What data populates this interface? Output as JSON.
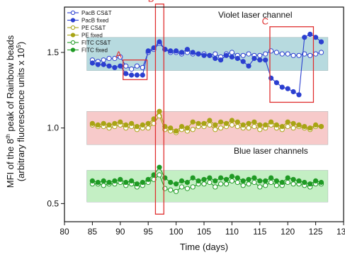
{
  "chart_data": {
    "type": "scatter",
    "xlabel": "Time (days)",
    "ylabel_line1": "MFI of the 8th peak of Rainbow beads",
    "ylabel_line2": "(arbitrary fluorescence units x 10",
    "ylabel_sup": "5",
    "ylabel_close": ")",
    "xlim": [
      80,
      130
    ],
    "ylim": [
      0.38,
      1.8
    ],
    "xticks": [
      80,
      85,
      90,
      95,
      100,
      105,
      110,
      115,
      120,
      125,
      130
    ],
    "yticks": [
      0.5,
      1.0,
      1.5
    ],
    "ytick_labels": [
      "0.5",
      "1.0",
      "1.5"
    ],
    "annotations": {
      "violet": "Violet laser channel",
      "blue": "Blue laser channels"
    },
    "bands": [
      {
        "ymin": 1.38,
        "ymax": 1.6,
        "color": "#b7dadf"
      },
      {
        "ymin": 0.89,
        "ymax": 1.11,
        "color": "#f7caca"
      },
      {
        "ymin": 0.51,
        "ymax": 0.72,
        "color": "#c4efc4"
      }
    ],
    "boxes": [
      {
        "label": "A",
        "x0": 90.5,
        "x1": 94.8,
        "y0": 1.32,
        "y1": 1.45
      },
      {
        "label": "B",
        "x0": 96.3,
        "x1": 97.8,
        "y0": 0.43,
        "y1": 1.82
      },
      {
        "label": "C",
        "x0": 116.8,
        "x1": 124.6,
        "y0": 1.17,
        "y1": 1.67
      }
    ],
    "legend": [
      {
        "label": "PacB CS&T",
        "color": "#2b3fd0",
        "filled": false
      },
      {
        "label": "PacB fixed",
        "color": "#2b3fd0",
        "filled": true
      },
      {
        "label": "PE CS&T",
        "color": "#a8a414",
        "filled": false
      },
      {
        "label": "PE fixed",
        "color": "#a8a414",
        "filled": true
      },
      {
        "label": "FITC CS&T",
        "color": "#1f9a24",
        "filled": false
      },
      {
        "label": "FITC fixed",
        "color": "#1f9a24",
        "filled": true
      }
    ],
    "series": [
      {
        "name": "PacB CS&T",
        "color": "#2b3fd0",
        "filled": false,
        "x": [
          85,
          86,
          87,
          88,
          89,
          90,
          91,
          92,
          93,
          94,
          95,
          96,
          97,
          98,
          99,
          100,
          101,
          102,
          103,
          104,
          105,
          106,
          107,
          108,
          109,
          110,
          111,
          112,
          113,
          114,
          115,
          116,
          117,
          118,
          119,
          120,
          121,
          122,
          123,
          124,
          125,
          126
        ],
        "y": [
          1.45,
          1.44,
          1.45,
          1.46,
          1.46,
          1.47,
          1.41,
          1.39,
          1.41,
          1.4,
          1.5,
          1.52,
          1.56,
          1.52,
          1.5,
          1.5,
          1.49,
          1.5,
          1.49,
          1.49,
          1.49,
          1.48,
          1.49,
          1.47,
          1.49,
          1.5,
          1.48,
          1.48,
          1.49,
          1.48,
          1.48,
          1.49,
          1.51,
          1.5,
          1.49,
          1.49,
          1.48,
          1.48,
          1.49,
          1.48,
          1.49,
          1.5
        ]
      },
      {
        "name": "PacB fixed",
        "color": "#2b3fd0",
        "filled": true,
        "x": [
          85,
          86,
          87,
          88,
          89,
          90,
          91,
          92,
          93,
          94,
          95,
          96,
          97,
          98,
          99,
          100,
          101,
          102,
          103,
          104,
          105,
          106,
          107,
          108,
          109,
          110,
          111,
          112,
          113,
          114,
          115,
          116,
          117,
          118,
          119,
          120,
          121,
          122,
          123,
          124,
          125,
          126
        ],
        "y": [
          1.43,
          1.42,
          1.42,
          1.41,
          1.4,
          1.41,
          1.36,
          1.35,
          1.35,
          1.35,
          1.51,
          1.53,
          1.57,
          1.52,
          1.51,
          1.51,
          1.5,
          1.52,
          1.5,
          1.49,
          1.48,
          1.48,
          1.46,
          1.45,
          1.48,
          1.47,
          1.46,
          1.44,
          1.41,
          1.46,
          1.45,
          1.45,
          1.33,
          1.3,
          1.27,
          1.26,
          1.24,
          1.22,
          1.6,
          1.62,
          1.6,
          1.57
        ]
      },
      {
        "name": "PE CS&T",
        "color": "#a8a414",
        "filled": false,
        "x": [
          85,
          86,
          87,
          88,
          89,
          90,
          91,
          92,
          93,
          94,
          95,
          96,
          97,
          98,
          99,
          100,
          101,
          102,
          103,
          104,
          105,
          106,
          107,
          108,
          109,
          110,
          111,
          112,
          113,
          114,
          115,
          116,
          117,
          118,
          119,
          120,
          121,
          122,
          123,
          124,
          125,
          126
        ],
        "y": [
          1.02,
          1.01,
          1.01,
          1.0,
          1.01,
          1.02,
          1.0,
          1.01,
          0.99,
          1.0,
          1.0,
          1.03,
          1.08,
          0.99,
          0.98,
          0.97,
          0.99,
          0.98,
          0.99,
          1.01,
          1.01,
          1.02,
          0.99,
          1.0,
          1.01,
          1.02,
          1.01,
          1.0,
          1.0,
          1.01,
          0.99,
          1.0,
          1.02,
          1.0,
          0.99,
          1.01,
          1.0,
          1.01,
          1.0,
          0.99,
          1.01,
          1.01
        ]
      },
      {
        "name": "PE fixed",
        "color": "#a8a414",
        "filled": true,
        "x": [
          85,
          86,
          87,
          88,
          89,
          90,
          91,
          92,
          93,
          94,
          95,
          96,
          97,
          98,
          99,
          100,
          101,
          102,
          103,
          104,
          105,
          106,
          107,
          108,
          109,
          110,
          111,
          112,
          113,
          114,
          115,
          116,
          117,
          118,
          119,
          120,
          121,
          122,
          123,
          124,
          125,
          126
        ],
        "y": [
          1.03,
          1.02,
          1.03,
          1.02,
          1.03,
          1.04,
          1.02,
          1.03,
          1.01,
          1.02,
          1.03,
          1.06,
          1.11,
          1.01,
          1.0,
          0.98,
          1.01,
          1.0,
          1.04,
          1.03,
          1.03,
          1.05,
          1.02,
          1.04,
          1.03,
          1.05,
          1.04,
          1.02,
          1.03,
          1.04,
          1.02,
          1.02,
          1.04,
          1.02,
          1.01,
          1.04,
          1.03,
          1.02,
          1.01,
          1.0,
          1.02,
          1.01
        ]
      },
      {
        "name": "FITC CS&T",
        "color": "#1f9a24",
        "filled": false,
        "x": [
          85,
          86,
          87,
          88,
          89,
          90,
          91,
          92,
          93,
          94,
          95,
          96,
          97,
          98,
          99,
          100,
          101,
          102,
          103,
          104,
          105,
          106,
          107,
          108,
          109,
          110,
          111,
          112,
          113,
          114,
          115,
          116,
          117,
          118,
          119,
          120,
          121,
          122,
          123,
          124,
          125,
          126
        ],
        "y": [
          0.63,
          0.63,
          0.62,
          0.63,
          0.63,
          0.64,
          0.62,
          0.63,
          0.61,
          0.62,
          0.64,
          0.66,
          0.69,
          0.6,
          0.59,
          0.58,
          0.61,
          0.6,
          0.61,
          0.63,
          0.63,
          0.64,
          0.61,
          0.63,
          0.63,
          0.65,
          0.64,
          0.62,
          0.63,
          0.64,
          0.61,
          0.62,
          0.64,
          0.62,
          0.62,
          0.64,
          0.63,
          0.63,
          0.62,
          0.61,
          0.63,
          0.63
        ]
      },
      {
        "name": "FITC fixed",
        "color": "#1f9a24",
        "filled": true,
        "x": [
          85,
          86,
          87,
          88,
          89,
          90,
          91,
          92,
          93,
          94,
          95,
          96,
          97,
          98,
          99,
          100,
          101,
          102,
          103,
          104,
          105,
          106,
          107,
          108,
          109,
          110,
          111,
          112,
          113,
          114,
          115,
          116,
          117,
          118,
          119,
          120,
          121,
          122,
          123,
          124,
          125,
          126
        ],
        "y": [
          0.65,
          0.64,
          0.65,
          0.64,
          0.65,
          0.66,
          0.64,
          0.65,
          0.63,
          0.64,
          0.66,
          0.69,
          0.74,
          0.67,
          0.64,
          0.63,
          0.65,
          0.64,
          0.67,
          0.65,
          0.66,
          0.67,
          0.65,
          0.67,
          0.66,
          0.68,
          0.67,
          0.65,
          0.66,
          0.67,
          0.65,
          0.65,
          0.67,
          0.65,
          0.64,
          0.67,
          0.66,
          0.65,
          0.64,
          0.63,
          0.65,
          0.64
        ]
      }
    ]
  }
}
